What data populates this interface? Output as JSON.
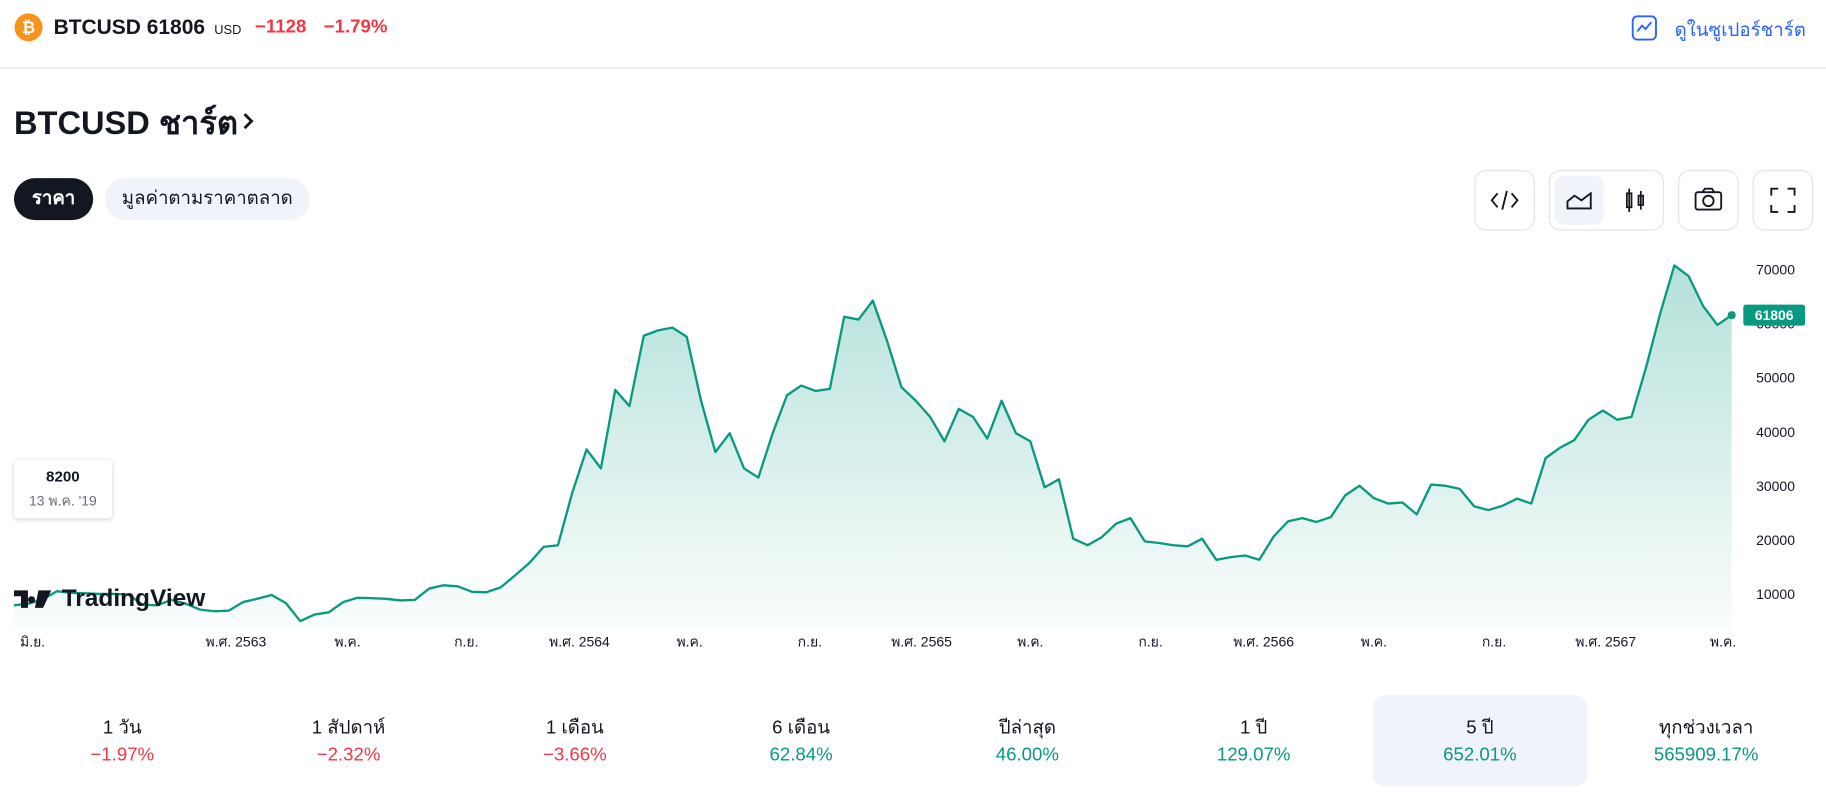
{
  "header": {
    "symbol": "BTCUSD",
    "price": 61806,
    "currency": "USD",
    "change": "−1128",
    "change_pct": "−1.79%",
    "change_color": "#f23645",
    "supercharts_link": "ดูในซูเปอร์ชาร์ต"
  },
  "title": "BTCUSD ชาร์ต",
  "tabs": [
    "ราคา",
    "มูลค่าตามราคาตลาด"
  ],
  "chart_data": {
    "type": "area",
    "color": "#089981",
    "values": [
      8200,
      8500,
      9300,
      10800,
      10500,
      10400,
      10300,
      10300,
      10200,
      8300,
      8200,
      9200,
      8500,
      7400,
      7100,
      7200,
      8800,
      9400,
      10100,
      8600,
      5300,
      6500,
      6900,
      8800,
      9600,
      9500,
      9400,
      9100,
      9200,
      11300,
      11900,
      11700,
      10700,
      10600,
      11500,
      13700,
      16000,
      19000,
      19300,
      29000,
      37000,
      33500,
      48000,
      45000,
      58000,
      59000,
      59500,
      57800,
      46000,
      36500,
      40000,
      33500,
      31800,
      40000,
      47000,
      48800,
      47800,
      48200,
      61500,
      61000,
      64500,
      57000,
      48500,
      46000,
      43000,
      38500,
      44500,
      43000,
      39000,
      46000,
      40000,
      38500,
      30000,
      31500,
      20500,
      19300,
      20800,
      23300,
      24300,
      20000,
      19700,
      19300,
      19100,
      20500,
      16600,
      17100,
      17400,
      16600,
      20900,
      23700,
      24300,
      23600,
      24500,
      28500,
      30300,
      28000,
      27000,
      27200,
      25000,
      30500,
      30300,
      29700,
      26500,
      25800,
      26600,
      27900,
      27000,
      35400,
      37300,
      38700,
      42500,
      44200,
      42500,
      43000,
      52000,
      62000,
      71000,
      69000,
      63500,
      60000,
      61806
    ],
    "xlim": [
      0,
      120
    ],
    "ylim": [
      6000,
      77000
    ],
    "yticks": [
      10000,
      20000,
      30000,
      40000,
      50000,
      60000,
      70000
    ],
    "xticks": [
      {
        "value": 1.3,
        "label": "มิ.ย."
      },
      {
        "value": 15.5,
        "label": "พ.ศ. 2563"
      },
      {
        "value": 23.3,
        "label": "พ.ค."
      },
      {
        "value": 31.6,
        "label": "ก.ย."
      },
      {
        "value": 39.5,
        "label": "พ.ศ. 2564"
      },
      {
        "value": 47.2,
        "label": "พ.ค."
      },
      {
        "value": 55.6,
        "label": "ก.ย."
      },
      {
        "value": 63.4,
        "label": "พ.ศ. 2565"
      },
      {
        "value": 71.0,
        "label": "พ.ค."
      },
      {
        "value": 79.4,
        "label": "ก.ย."
      },
      {
        "value": 87.3,
        "label": "พ.ศ. 2566"
      },
      {
        "value": 95.0,
        "label": "พ.ค."
      },
      {
        "value": 103.4,
        "label": "ก.ย."
      },
      {
        "value": 111.2,
        "label": "พ.ศ. 2567"
      },
      {
        "value": 119.4,
        "label": "พ.ค."
      }
    ],
    "tooltip_date": "13 พ.ค. '19",
    "watermark": "TradingView"
  },
  "performance": {
    "selected": 6,
    "items": [
      {
        "label": "1 วัน",
        "value": "−1.97%",
        "color": "#f23645"
      },
      {
        "label": "1 สัปดาห์",
        "value": "−2.32%",
        "color": "#f23645"
      },
      {
        "label": "1 เดือน",
        "value": "−3.66%",
        "color": "#f23645"
      },
      {
        "label": "6 เดือน",
        "value": "62.84%",
        "color": "#089981"
      },
      {
        "label": "ปีล่าสุด",
        "value": "46.00%",
        "color": "#089981"
      },
      {
        "label": "1 ปี",
        "value": "129.07%",
        "color": "#089981"
      },
      {
        "label": "5 ปี",
        "value": "652.01%",
        "color": "#089981"
      },
      {
        "label": "ทุกช่วงเวลา",
        "value": "565909.17%",
        "color": "#089981"
      }
    ]
  }
}
